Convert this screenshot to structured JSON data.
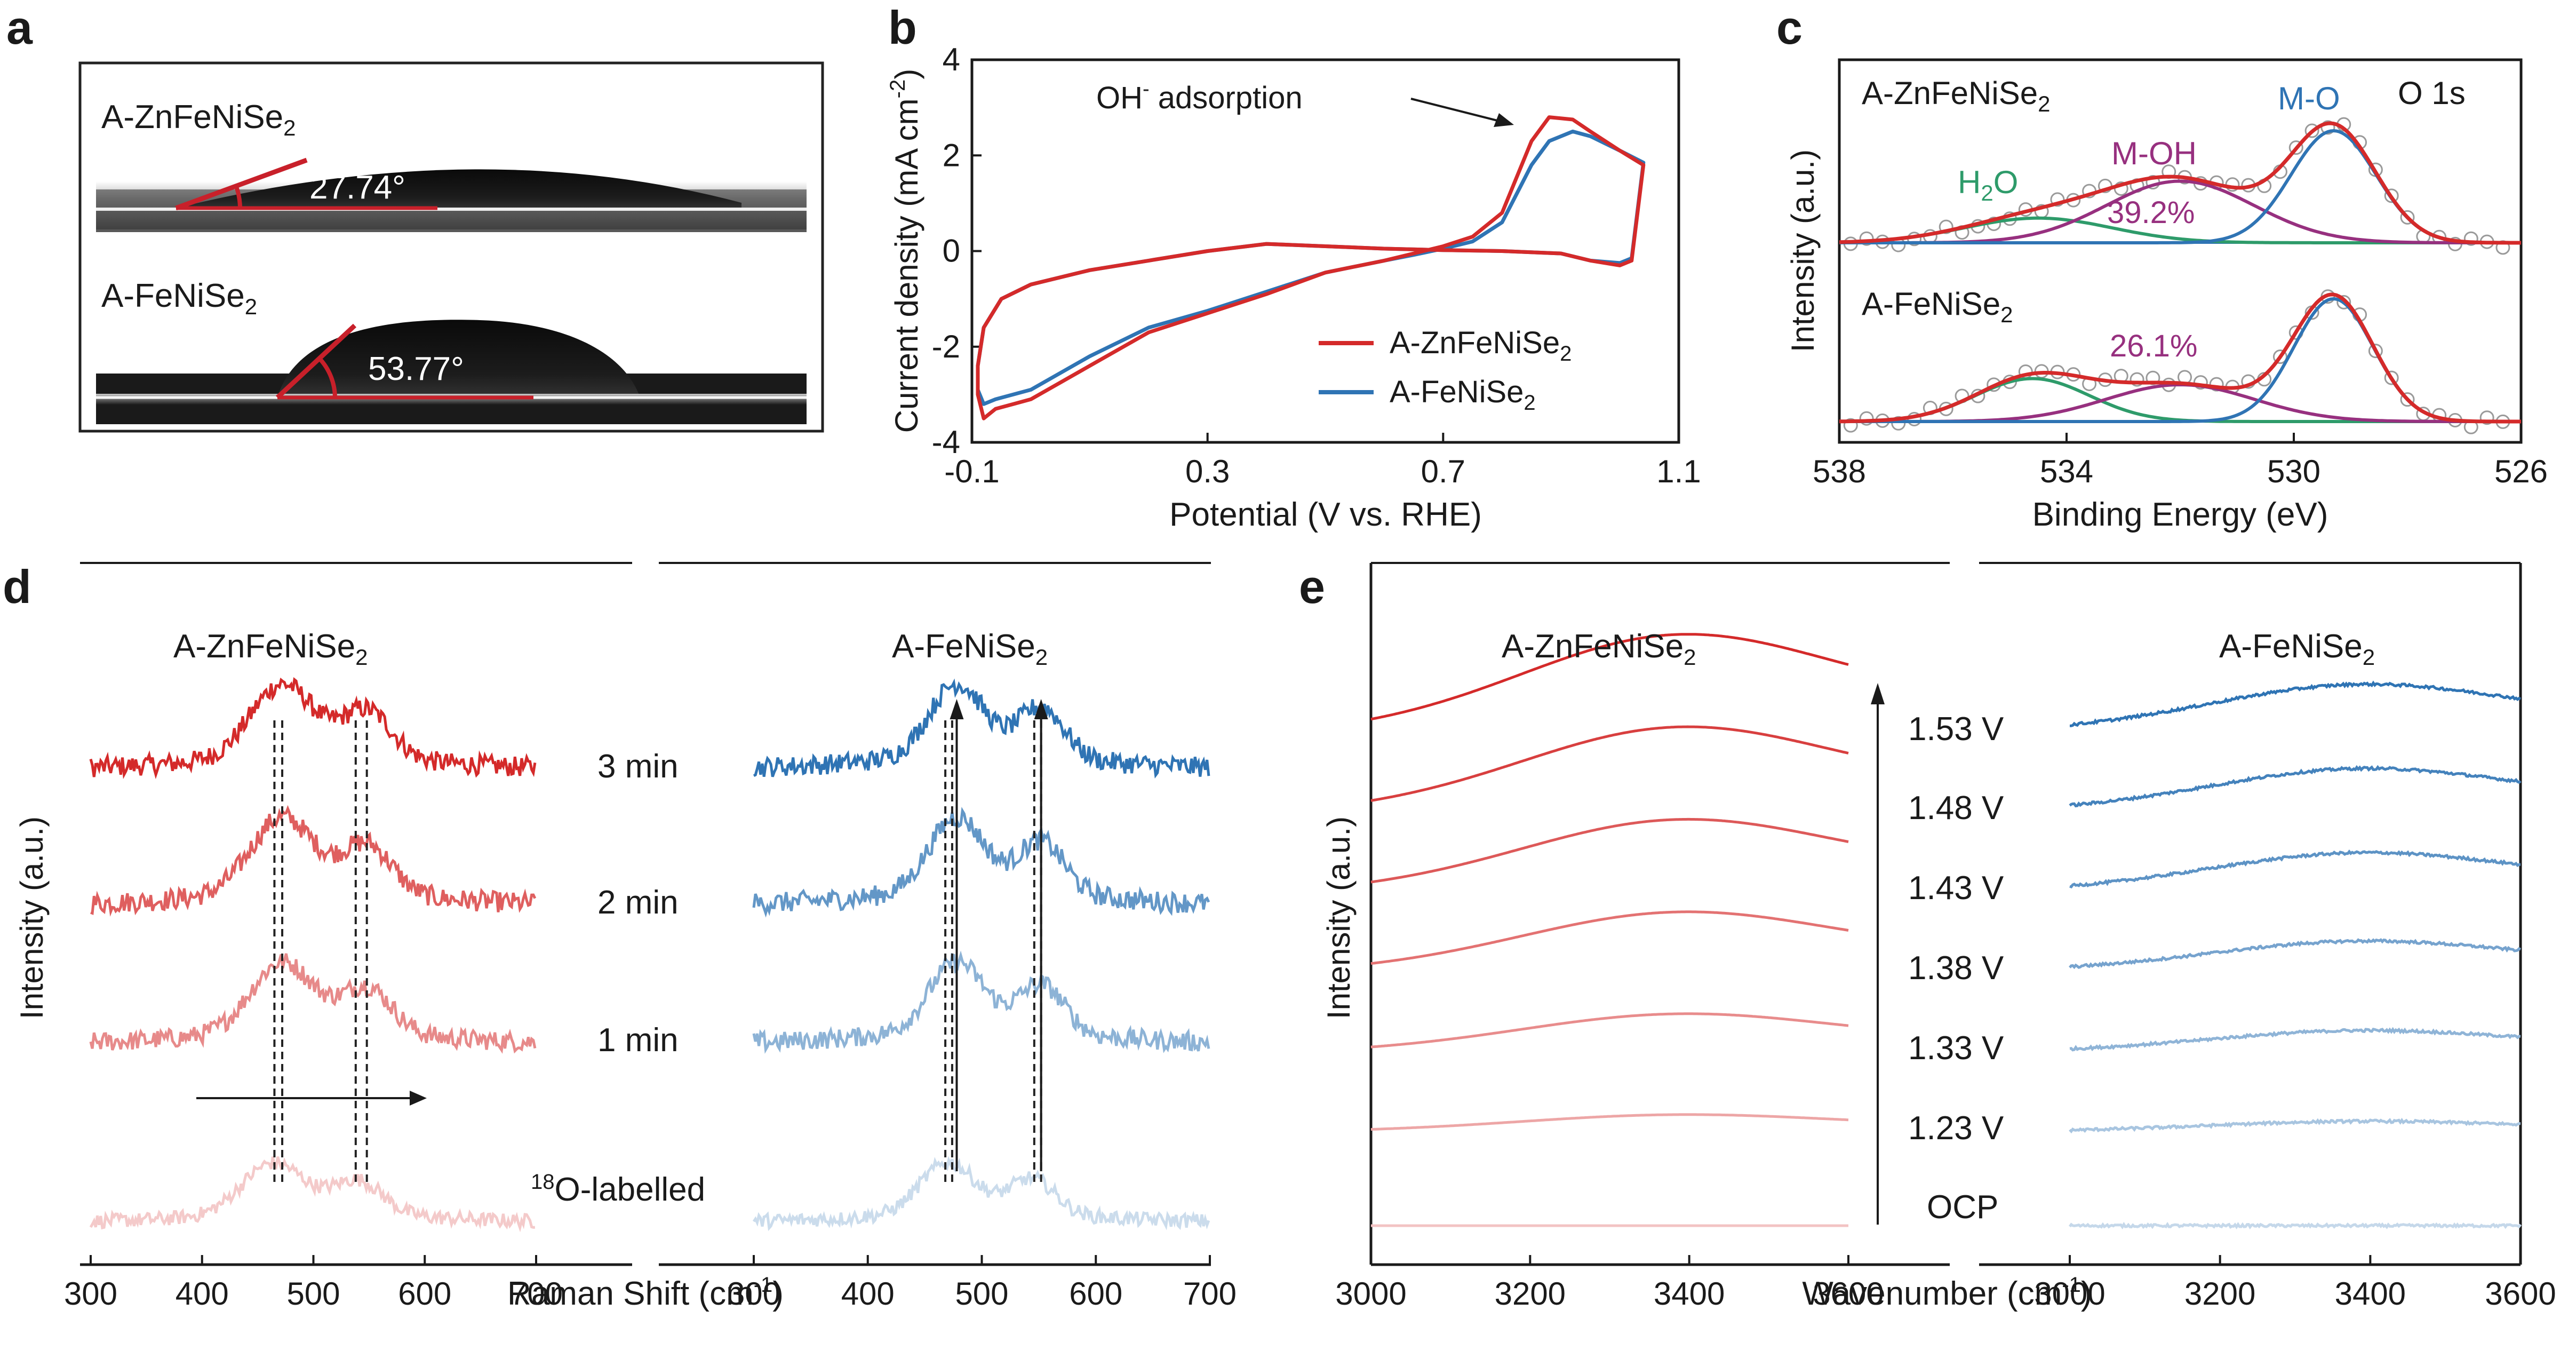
{
  "colors": {
    "red": "#d42a2a",
    "blue": "#2f74b4",
    "green": "#2e9b6a",
    "purple": "#97307f",
    "axis": "#1a1a1a",
    "marker": "#9a9a9a",
    "angle": "#c8202a"
  },
  "panels": {
    "a": {
      "letter": "a",
      "images": [
        {
          "label_main": "A-ZnFeNiSe",
          "label_sub": "2",
          "angle": "27.74°",
          "contact_angle_deg": 27.74
        },
        {
          "label_main": "A-FeNiSe",
          "label_sub": "2",
          "angle": "53.77°",
          "contact_angle_deg": 53.77
        }
      ]
    },
    "b": {
      "letter": "b",
      "annotation": "OH",
      "annotation_sup": "-",
      "annotation_rest": " adsorption"
    },
    "c": {
      "letter": "c",
      "core_level": "O 1s",
      "labels": {
        "water": "H",
        "water_sub": "2",
        "water_end": "O",
        "moh": "M-OH",
        "mo": "M-O",
        "pct_top": "39.2%",
        "pct_bottom": "26.1%"
      }
    },
    "d": {
      "letter": "d",
      "time_labels": [
        "3 min",
        "2 min",
        "1 min"
      ],
      "labelled_sup": "18",
      "labelled_text": "O-labelled"
    },
    "e": {
      "letter": "e",
      "potentials": [
        "1.53 V",
        "1.48 V",
        "1.43 V",
        "1.38 V",
        "1.33 V",
        "1.23 V",
        "OCP"
      ]
    }
  },
  "chart_data": [
    {
      "panel": "b",
      "type": "line",
      "xlabel": "Potential (V vs. RHE)",
      "ylabel": "Current density (mA cm",
      "ylabel_sup": "-2",
      "ylabel_end": ")",
      "xlim": [
        -0.1,
        1.1
      ],
      "ylim": [
        -4,
        4
      ],
      "xticks": [
        -0.1,
        0.3,
        0.7,
        1.1
      ],
      "xtick_labels": [
        "-0.1",
        "0.3",
        "0.7",
        "1.1"
      ],
      "yticks": [
        -4,
        -2,
        0,
        2,
        4
      ],
      "ytick_labels": [
        "-4",
        "-2",
        "0",
        "2",
        "4"
      ],
      "legend_position": "bottom-right",
      "series": [
        {
          "name_main": "A-ZnFeNiSe",
          "name_sub": "2",
          "color": "red",
          "x": [
            -0.08,
            -0.06,
            0.0,
            0.1,
            0.2,
            0.3,
            0.4,
            0.5,
            0.6,
            0.65,
            0.7,
            0.75,
            0.8,
            0.85,
            0.88,
            0.92,
            0.95,
            1.0,
            1.04,
            1.02,
            1.0,
            0.95,
            0.9,
            0.8,
            0.7,
            0.6,
            0.5,
            0.4,
            0.3,
            0.2,
            0.1,
            0.0,
            -0.05,
            -0.08,
            -0.09,
            -0.09,
            -0.08
          ],
          "y": [
            -3.5,
            -3.3,
            -3.1,
            -2.4,
            -1.7,
            -1.3,
            -0.9,
            -0.45,
            -0.2,
            -0.05,
            0.1,
            0.3,
            0.8,
            2.3,
            2.8,
            2.75,
            2.5,
            2.1,
            1.8,
            -0.2,
            -0.3,
            -0.2,
            -0.05,
            0.0,
            0.02,
            0.05,
            0.1,
            0.15,
            0.0,
            -0.2,
            -0.4,
            -0.7,
            -1.0,
            -1.6,
            -2.4,
            -3.0,
            -3.5
          ]
        },
        {
          "name_main": "A-FeNiSe",
          "name_sub": "2",
          "color": "blue",
          "x": [
            -0.08,
            -0.06,
            0.0,
            0.1,
            0.2,
            0.3,
            0.4,
            0.5,
            0.6,
            0.65,
            0.7,
            0.75,
            0.8,
            0.85,
            0.88,
            0.92,
            0.95,
            1.0,
            1.04,
            1.02,
            1.0,
            0.95,
            0.9,
            0.8,
            0.7,
            0.6,
            0.5,
            0.4,
            0.3,
            0.2,
            0.1,
            0.0,
            -0.05,
            -0.08,
            -0.09,
            -0.09,
            -0.08
          ],
          "y": [
            -3.2,
            -3.1,
            -2.9,
            -2.2,
            -1.6,
            -1.25,
            -0.85,
            -0.45,
            -0.2,
            -0.08,
            0.05,
            0.2,
            0.6,
            1.8,
            2.3,
            2.5,
            2.4,
            2.1,
            1.85,
            -0.15,
            -0.25,
            -0.2,
            -0.05,
            0.0,
            0.02,
            0.05,
            0.1,
            0.15,
            0.0,
            -0.2,
            -0.4,
            -0.7,
            -1.0,
            -1.6,
            -2.4,
            -2.9,
            -3.2
          ]
        }
      ]
    },
    {
      "panel": "c",
      "type": "line",
      "xlabel": "Binding Energy (eV)",
      "ylabel": "Intensity (a.u.)",
      "xlim": [
        538,
        526
      ],
      "reversed_x": true,
      "xticks": [
        538,
        534,
        530,
        526
      ],
      "xtick_labels": [
        "538",
        "534",
        "530",
        "526"
      ],
      "spectra": [
        {
          "label_main": "A-ZnFeNiSe",
          "label_sub": "2",
          "peaks": {
            "mo": {
              "center": 529.3,
              "height": 1.0,
              "width": 0.75
            },
            "moh": {
              "center": 532.0,
              "height": 0.55,
              "width": 1.3
            },
            "h2o": {
              "center": 534.5,
              "height": 0.22,
              "width": 1.3
            }
          }
        },
        {
          "label_main": "A-FeNiSe",
          "label_sub": "2",
          "peaks": {
            "mo": {
              "center": 529.3,
              "height": 1.0,
              "width": 0.7
            },
            "moh": {
              "center": 532.0,
              "height": 0.3,
              "width": 1.3
            },
            "h2o": {
              "center": 534.6,
              "height": 0.35,
              "width": 1.0
            }
          }
        }
      ]
    },
    {
      "panel": "d",
      "type": "line",
      "xlabel": "Raman Shift (cm",
      "xlabel_sup": "-1",
      "xlabel_end": ")",
      "ylabel": "Intensity (a.u.)",
      "xlim": [
        300,
        700
      ],
      "xticks": [
        300,
        400,
        500,
        600,
        700
      ],
      "xtick_labels": [
        "300",
        "400",
        "500",
        "600",
        "700"
      ],
      "subplots": [
        {
          "title_main": "A-ZnFeNiSe",
          "title_sub": "2",
          "dashed_lines": [
            465,
            472,
            538,
            548
          ],
          "peaks": [
            [
              472,
              1.0,
              28
            ],
            [
              548,
              0.65,
              22
            ]
          ]
        },
        {
          "title_main": "A-FeNiSe",
          "title_sub": "2",
          "dashed_lines": [
            468,
            474,
            546,
            552
          ],
          "peaks": [
            [
              478,
              1.0,
              24
            ],
            [
              552,
              0.7,
              20
            ]
          ]
        }
      ],
      "traces": [
        "3 min",
        "2 min",
        "1 min",
        "18O-labelled"
      ]
    },
    {
      "panel": "e",
      "type": "line",
      "xlabel": "Wavenumber (cm",
      "xlabel_sup": "-1",
      "xlabel_end": ")",
      "ylabel": "Intensity (a.u.)",
      "xlim": [
        3000,
        3600
      ],
      "xticks": [
        3000,
        3200,
        3400,
        3600
      ],
      "xtick_labels": [
        "3000",
        "3200",
        "3400",
        "3600"
      ],
      "subplots": [
        {
          "title_main": "A-ZnFeNiSe",
          "title_sub": "2",
          "band_center": 3380,
          "band_amplitudes": [
            0.0,
            0.2,
            0.45,
            0.7,
            0.85,
            1.0,
            1.15
          ]
        },
        {
          "title_main": "A-FeNiSe",
          "title_sub": "2",
          "band_center": 3380,
          "band_amplitudes": [
            0.0,
            0.12,
            0.25,
            0.35,
            0.45,
            0.5,
            0.55
          ]
        }
      ],
      "traces": [
        "OCP",
        "1.23 V",
        "1.33 V",
        "1.38 V",
        "1.43 V",
        "1.48 V",
        "1.53 V"
      ]
    }
  ]
}
